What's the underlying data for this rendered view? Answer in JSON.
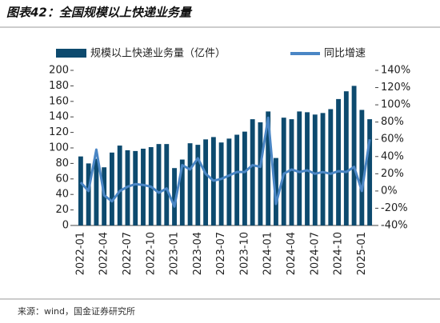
{
  "chart_data": {
    "type": "bar_line",
    "title": "图表42：全国规模以上快递业务量",
    "source": "来源：wind，国金证券研究所",
    "legend": "top",
    "categories": [
      "2022-01",
      null,
      null,
      "2022-04",
      null,
      null,
      "2022-07",
      null,
      null,
      "2022-10",
      null,
      null,
      "2023-01",
      null,
      null,
      "2023-04",
      null,
      null,
      "2023-07",
      null,
      null,
      "2023-10",
      null,
      null,
      "2024-01",
      null,
      null,
      "2024-04",
      null,
      null,
      "2024-07",
      null,
      null,
      "2024-10",
      null,
      null,
      "2025-01",
      null
    ],
    "series": [
      {
        "name": "规模以上快递业务量（亿件）",
        "color": "#0d4a6e",
        "kind": "bar",
        "values": [
          89,
          80,
          86,
          75,
          94,
          103,
          97,
          96,
          99,
          101,
          105,
          105,
          74,
          85,
          106,
          104,
          111,
          114,
          107,
          112,
          117,
          121,
          137,
          133,
          147,
          87,
          139,
          137,
          147,
          146,
          143,
          145,
          150,
          163,
          173,
          180,
          149,
          137
        ]
      },
      {
        "name": "同比增速",
        "color": "#4a86c5",
        "kind": "line",
        "axis": "y2",
        "values": [
          10,
          0,
          48,
          -5,
          -12,
          0,
          5,
          8,
          7,
          5,
          -2,
          3,
          -18,
          30,
          25,
          38,
          20,
          12,
          14,
          18,
          22,
          22,
          30,
          28,
          85,
          -15,
          20,
          25,
          22,
          24,
          20,
          22,
          20,
          23,
          22,
          28,
          0,
          60
        ]
      }
    ],
    "ylim": [
      0,
      200
    ],
    "yticks": [
      0,
      20,
      40,
      60,
      80,
      100,
      120,
      140,
      160,
      180,
      200
    ],
    "y2lim": [
      -40,
      140
    ],
    "y2ticks": [
      {
        "value": -40,
        "label": "-40%"
      },
      {
        "value": -20,
        "label": "-20%"
      },
      {
        "value": 0,
        "label": "0%"
      },
      {
        "value": 20,
        "label": "20%"
      },
      {
        "value": 40,
        "label": "40%"
      },
      {
        "value": 60,
        "label": "60%"
      },
      {
        "value": 80,
        "label": "80%"
      },
      {
        "value": 100,
        "label": "100%"
      },
      {
        "value": 120,
        "label": "120%"
      },
      {
        "value": 140,
        "label": "140%"
      }
    ]
  }
}
